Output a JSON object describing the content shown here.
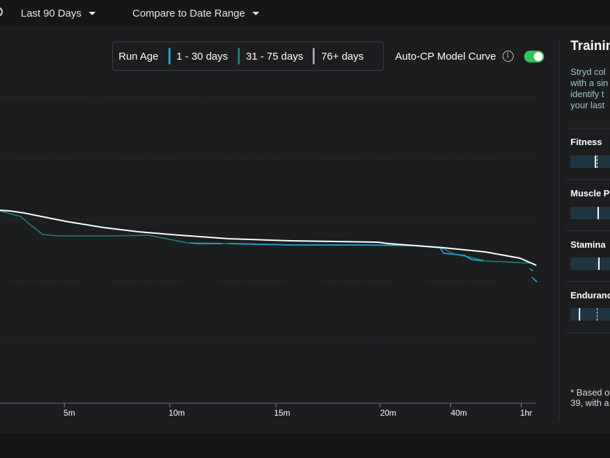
{
  "topbar": {
    "range_label": "Last 90 Days",
    "compare_label": "Compare to Date Range"
  },
  "legend": {
    "title": "Run Age",
    "items": [
      {
        "label": "1 - 30 days",
        "color": "#1fa3cc"
      },
      {
        "label": "31 - 75 days",
        "color": "#1d7a76"
      },
      {
        "label": "76+ days",
        "color": "#9ea0a3"
      }
    ]
  },
  "auto_cp": {
    "label": "Auto-CP Model Curve",
    "info_glyph": "i",
    "enabled": true,
    "toggle_color": "#2ec45a"
  },
  "chart_data": {
    "type": "line",
    "x_axis": {
      "ticks": [
        "5m",
        "10m",
        "15m",
        "20m",
        "40m",
        "1hr"
      ]
    },
    "grid": "dotted-horizontal",
    "series": [
      {
        "color": "#ffffff",
        "x": [
          "3m",
          "5m",
          "10m",
          "15m",
          "20m",
          "40m",
          "1hr"
        ],
        "y_relative": [
          1.0,
          0.93,
          0.88,
          0.86,
          0.85,
          0.79,
          0.73
        ]
      },
      {
        "color": "#1d7a76",
        "x": [
          "3m",
          "5m",
          "10m",
          "15m",
          "20m",
          "40m",
          "1hr"
        ],
        "y_relative": [
          0.98,
          0.87,
          0.84,
          0.83,
          0.83,
          0.76,
          0.73
        ]
      },
      {
        "color": "#1fa3cc",
        "x": [
          "10m",
          "15m",
          "20m",
          "40m",
          "1hr"
        ],
        "y_relative": [
          0.84,
          0.83,
          0.83,
          0.71,
          0.63
        ]
      }
    ]
  },
  "sidebar": {
    "title": "Trainin",
    "description": "Stryd col\nwith a sin\nidentify t\nyour last",
    "metrics": [
      {
        "label": "Fitness"
      },
      {
        "label": "Muscle Po"
      },
      {
        "label": "Stamina"
      },
      {
        "label": "Enduranc"
      }
    ],
    "note": "* Based o\n39, with a"
  }
}
